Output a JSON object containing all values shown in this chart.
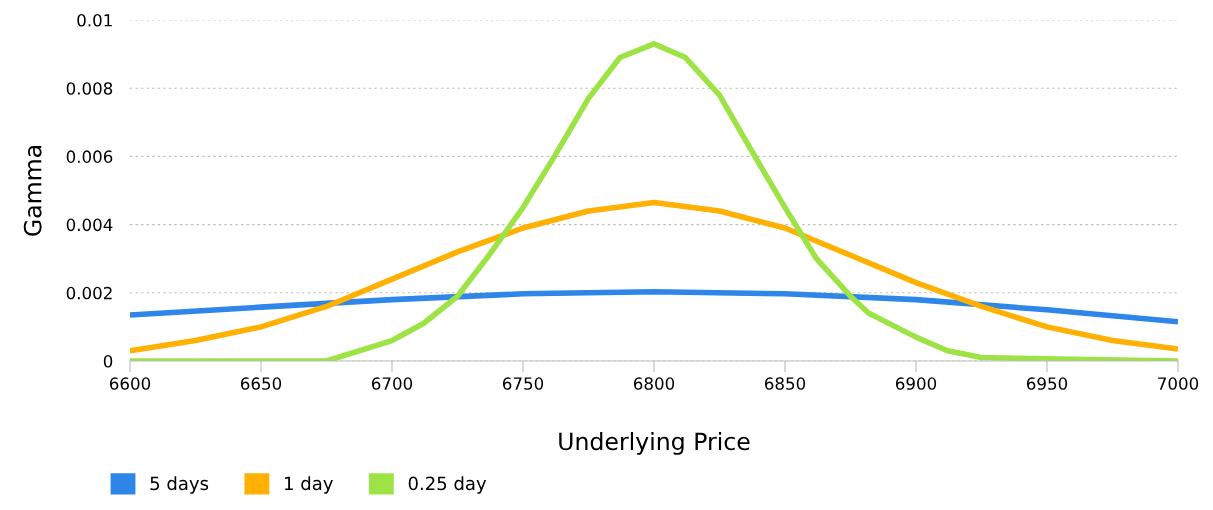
{
  "chart_data": {
    "type": "line",
    "xlabel": "Underlying Price",
    "ylabel": "Gamma",
    "xlim": [
      6600,
      7000
    ],
    "xticks": [
      6600,
      6650,
      6700,
      6750,
      6800,
      6850,
      6900,
      6950,
      7000
    ],
    "ylim": [
      0,
      0.01
    ],
    "yticks": [
      0,
      0.002,
      0.004,
      0.006,
      0.008,
      0.01
    ],
    "grid": "y",
    "legend": "bottom",
    "marker": "none",
    "line_style": "solid",
    "series": [
      {
        "name": "5 days",
        "color": "#2e86e8",
        "x": [
          6600,
          6650,
          6700,
          6750,
          6800,
          6850,
          6900,
          6950,
          7000
        ],
        "values": [
          0.00135,
          0.00158,
          0.0018,
          0.00197,
          0.00203,
          0.00197,
          0.0018,
          0.0015,
          0.00115
        ]
      },
      {
        "name": "1 day",
        "color": "#ffb000",
        "x": [
          6600,
          6625,
          6650,
          6675,
          6700,
          6725,
          6750,
          6775,
          6800,
          6825,
          6850,
          6875,
          6900,
          6925,
          6950,
          6975,
          7000
        ],
        "values": [
          0.0003,
          0.0006,
          0.001,
          0.0016,
          0.0024,
          0.0032,
          0.0039,
          0.0044,
          0.00465,
          0.0044,
          0.0039,
          0.0031,
          0.0023,
          0.0016,
          0.001,
          0.0006,
          0.00035
        ]
      },
      {
        "name": "0.25 day",
        "color": "#9de346",
        "x": [
          6600,
          6675,
          6700,
          6712,
          6725,
          6737,
          6750,
          6762,
          6775,
          6787,
          6800,
          6812,
          6825,
          6837,
          6850,
          6862,
          6875,
          6882,
          6900,
          6912,
          6925,
          7000
        ],
        "values": [
          0,
          0,
          0.0006,
          0.0011,
          0.0019,
          0.0031,
          0.0045,
          0.006,
          0.0077,
          0.0089,
          0.0093,
          0.0089,
          0.0078,
          0.0062,
          0.0045,
          0.003,
          0.0019,
          0.0014,
          0.0007,
          0.0003,
          0.0001,
          0
        ]
      }
    ]
  }
}
